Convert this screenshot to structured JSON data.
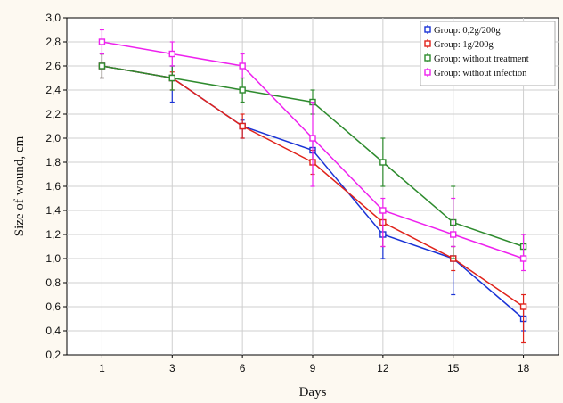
{
  "chart_data": {
    "type": "line",
    "xlabel": "Days",
    "ylabel": "Size of wound, cm",
    "x": [
      1,
      3,
      6,
      9,
      12,
      15,
      18
    ],
    "x_tick_labels": [
      "1",
      "3",
      "6",
      "9",
      "12",
      "15",
      "18"
    ],
    "ylim": [
      0.2,
      3.0
    ],
    "y_tick_labels": [
      "0,2",
      "0,4",
      "0,6",
      "0,8",
      "1,0",
      "1,2",
      "1,4",
      "1,6",
      "1,8",
      "2,0",
      "2,2",
      "2,4",
      "2,6",
      "2,8",
      "3,0"
    ],
    "grid": true,
    "legend_position": "top-right",
    "series": [
      {
        "name": "Group: 0,2g/200g",
        "color": "#1a33d6",
        "values": [
          2.6,
          2.5,
          2.1,
          1.9,
          1.2,
          1.0,
          0.5
        ],
        "error_low": [
          2.5,
          2.3,
          2.0,
          1.8,
          1.0,
          0.7,
          0.4
        ],
        "error_high": [
          2.7,
          2.6,
          2.15,
          2.0,
          1.3,
          1.1,
          0.6
        ]
      },
      {
        "name": "Group: 1g/200g",
        "color": "#e0231b",
        "values": [
          2.6,
          2.5,
          2.1,
          1.8,
          1.3,
          1.0,
          0.6
        ],
        "error_low": [
          2.5,
          2.4,
          2.0,
          1.7,
          1.1,
          0.9,
          0.3
        ],
        "error_high": [
          2.7,
          2.55,
          2.2,
          1.9,
          1.4,
          1.1,
          0.7
        ]
      },
      {
        "name": "Group: without treatment",
        "color": "#2e8b2e",
        "values": [
          2.6,
          2.5,
          2.4,
          2.3,
          1.8,
          1.3,
          1.1
        ],
        "error_low": [
          2.5,
          2.4,
          2.3,
          2.2,
          1.6,
          1.0,
          1.0
        ],
        "error_high": [
          2.7,
          2.6,
          2.5,
          2.4,
          2.0,
          1.6,
          1.2
        ]
      },
      {
        "name": "Group: without infection",
        "color": "#ee22ee",
        "values": [
          2.8,
          2.7,
          2.6,
          2.0,
          1.4,
          1.2,
          1.0
        ],
        "error_low": [
          2.7,
          2.6,
          2.5,
          1.6,
          1.1,
          1.1,
          0.9
        ],
        "error_high": [
          2.9,
          2.8,
          2.7,
          2.3,
          1.5,
          1.5,
          1.2
        ]
      }
    ]
  }
}
